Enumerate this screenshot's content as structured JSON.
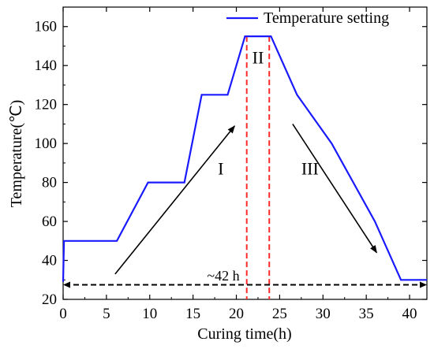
{
  "chart_data": {
    "type": "line",
    "xlabel": "Curing time(h)",
    "ylabel": "Temperature(℃)",
    "xlim": [
      0,
      42
    ],
    "ylim": [
      20,
      170
    ],
    "x_ticks": [
      0,
      5,
      10,
      15,
      20,
      25,
      30,
      35,
      40
    ],
    "y_ticks": [
      20,
      40,
      60,
      80,
      100,
      120,
      140,
      160
    ],
    "y_tick_labels": [
      "20",
      "40",
      "60",
      "80",
      "100",
      "120",
      "140",
      "160"
    ],
    "legend_position": "top-right",
    "series": [
      {
        "name": "Temperature setting",
        "color": "#1a1aff",
        "x": [
          0,
          0.1,
          6.2,
          9.8,
          14,
          16,
          19,
          21,
          24,
          27,
          31,
          36,
          39,
          42
        ],
        "y": [
          29,
          50,
          50,
          80,
          80,
          125,
          125,
          155,
          155,
          125,
          100,
          60,
          30,
          30
        ]
      }
    ],
    "stage_boundaries": {
      "x": [
        21.2,
        23.8
      ],
      "color": "#ff2a2a"
    },
    "stage_labels": [
      {
        "text": "I",
        "x": 18.2,
        "y": 84
      },
      {
        "text": "II",
        "x": 22.5,
        "y": 141
      },
      {
        "text": "III",
        "x": 28.5,
        "y": 84
      }
    ],
    "arrows": [
      {
        "from": [
          6,
          33
        ],
        "to": [
          19.8,
          109
        ]
      },
      {
        "from": [
          26.5,
          110
        ],
        "to": [
          36.2,
          44
        ]
      }
    ],
    "duration": {
      "text": "~42 h",
      "y": 27.5,
      "x_from": 0,
      "x_to": 42,
      "label_x": 18.5,
      "label_y": 30.5
    }
  }
}
